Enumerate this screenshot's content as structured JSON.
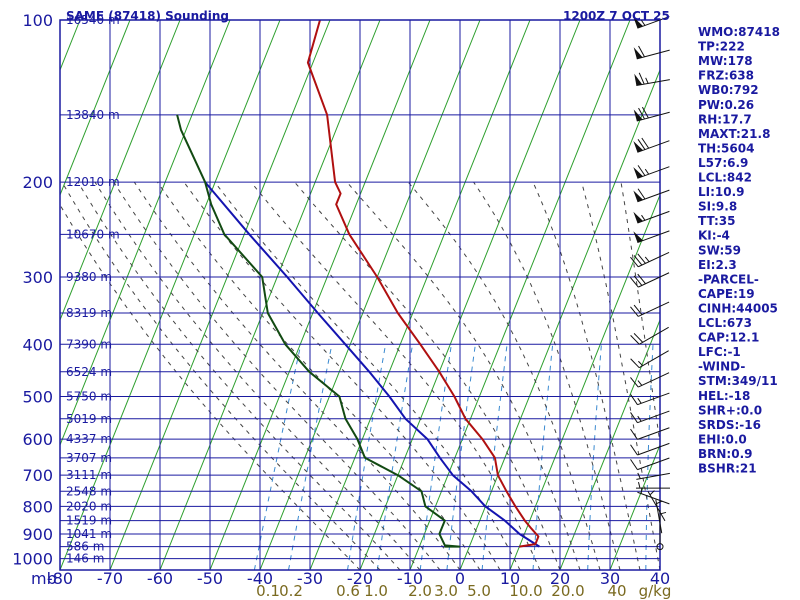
{
  "chart_data": {
    "type": "skew-t",
    "title": "SAME (87418) Sounding",
    "valid_time": "1200Z  7 OCT 25",
    "y_unit_label": "mb",
    "pressure_ticks": [
      100,
      200,
      300,
      400,
      500,
      600,
      700,
      800,
      900,
      1000
    ],
    "temp_ticks": [
      -80,
      -70,
      -60,
      -50,
      -40,
      -30,
      -20,
      -10,
      0,
      10,
      20,
      30,
      40
    ],
    "height_labels": [
      {
        "p": 100,
        "label": "16540 m"
      },
      {
        "p": 150,
        "label": "13840 m"
      },
      {
        "p": 200,
        "label": "12010 m"
      },
      {
        "p": 250,
        "label": "10670 m"
      },
      {
        "p": 300,
        "label": "9380 m"
      },
      {
        "p": 350,
        "label": "8319 m"
      },
      {
        "p": 400,
        "label": "7390 m"
      },
      {
        "p": 450,
        "label": "6524 m"
      },
      {
        "p": 500,
        "label": "5750 m"
      },
      {
        "p": 550,
        "label": "5019 m"
      },
      {
        "p": 600,
        "label": "4337 m"
      },
      {
        "p": 650,
        "label": "3707 m"
      },
      {
        "p": 700,
        "label": "3111 m"
      },
      {
        "p": 750,
        "label": "2548 m"
      },
      {
        "p": 800,
        "label": "2020 m"
      },
      {
        "p": 850,
        "label": "1519 m"
      },
      {
        "p": 900,
        "label": "1041 m"
      },
      {
        "p": 950,
        "label": "586 m"
      },
      {
        "p": 1000,
        "label": "146 m"
      }
    ],
    "mixing_ratio_labels": [
      "0.1",
      "0.2",
      "0.6",
      "1.0",
      "2.0",
      "3.0",
      "5.0",
      "10.0",
      "20.0",
      "40",
      "g/kg"
    ],
    "temperature": [
      {
        "p": 950,
        "t": 10
      },
      {
        "p": 940,
        "t": 13
      },
      {
        "p": 910,
        "t": 13
      },
      {
        "p": 880,
        "t": 11
      },
      {
        "p": 850,
        "t": 9
      },
      {
        "p": 800,
        "t": 6
      },
      {
        "p": 750,
        "t": 3
      },
      {
        "p": 700,
        "t": 0
      },
      {
        "p": 650,
        "t": -2
      },
      {
        "p": 600,
        "t": -6
      },
      {
        "p": 550,
        "t": -11
      },
      {
        "p": 500,
        "t": -15
      },
      {
        "p": 450,
        "t": -20
      },
      {
        "p": 400,
        "t": -26
      },
      {
        "p": 350,
        "t": -33
      },
      {
        "p": 300,
        "t": -40
      },
      {
        "p": 250,
        "t": -49
      },
      {
        "p": 220,
        "t": -54
      },
      {
        "p": 210,
        "t": -54
      },
      {
        "p": 200,
        "t": -56
      },
      {
        "p": 150,
        "t": -63
      },
      {
        "p": 120,
        "t": -71
      },
      {
        "p": 100,
        "t": -72
      }
    ],
    "dewpoint": [
      {
        "p": 950,
        "t": -5
      },
      {
        "p": 950,
        "t": -2
      },
      {
        "p": 945,
        "t": -5
      },
      {
        "p": 900,
        "t": -7
      },
      {
        "p": 850,
        "t": -7
      },
      {
        "p": 800,
        "t": -12
      },
      {
        "p": 750,
        "t": -14
      },
      {
        "p": 700,
        "t": -20
      },
      {
        "p": 650,
        "t": -28
      },
      {
        "p": 600,
        "t": -31
      },
      {
        "p": 550,
        "t": -35
      },
      {
        "p": 500,
        "t": -38
      },
      {
        "p": 450,
        "t": -46
      },
      {
        "p": 400,
        "t": -53
      },
      {
        "p": 350,
        "t": -59
      },
      {
        "p": 300,
        "t": -63
      },
      {
        "p": 250,
        "t": -74
      },
      {
        "p": 220,
        "t": -79
      },
      {
        "p": 200,
        "t": -82
      },
      {
        "p": 160,
        "t": -91
      },
      {
        "p": 150,
        "t": -93
      }
    ],
    "parcel": [
      {
        "p": 950,
        "t": 14
      },
      {
        "p": 900,
        "t": 9
      },
      {
        "p": 850,
        "t": 5
      },
      {
        "p": 800,
        "t": 0
      },
      {
        "p": 750,
        "t": -4
      },
      {
        "p": 700,
        "t": -9
      },
      {
        "p": 650,
        "t": -13
      },
      {
        "p": 600,
        "t": -17
      },
      {
        "p": 550,
        "t": -23
      },
      {
        "p": 500,
        "t": -28
      },
      {
        "p": 450,
        "t": -34
      },
      {
        "p": 400,
        "t": -41
      },
      {
        "p": 350,
        "t": -49
      },
      {
        "p": 300,
        "t": -58
      },
      {
        "p": 250,
        "t": -69
      },
      {
        "p": 200,
        "t": -82
      }
    ],
    "wind_barbs": [
      {
        "p": 100,
        "dir": 250,
        "spd": 55
      },
      {
        "p": 115,
        "dir": 255,
        "spd": 60
      },
      {
        "p": 130,
        "dir": 260,
        "spd": 65
      },
      {
        "p": 150,
        "dir": 255,
        "spd": 70
      },
      {
        "p": 170,
        "dir": 250,
        "spd": 70
      },
      {
        "p": 190,
        "dir": 250,
        "spd": 65
      },
      {
        "p": 210,
        "dir": 250,
        "spd": 60
      },
      {
        "p": 230,
        "dir": 250,
        "spd": 55
      },
      {
        "p": 250,
        "dir": 250,
        "spd": 50
      },
      {
        "p": 275,
        "dir": 245,
        "spd": 35
      },
      {
        "p": 300,
        "dir": 245,
        "spd": 30
      },
      {
        "p": 340,
        "dir": 245,
        "spd": 20
      },
      {
        "p": 380,
        "dir": 240,
        "spd": 20
      },
      {
        "p": 420,
        "dir": 240,
        "spd": 15
      },
      {
        "p": 460,
        "dir": 245,
        "spd": 15
      },
      {
        "p": 500,
        "dir": 250,
        "spd": 15
      },
      {
        "p": 540,
        "dir": 250,
        "spd": 15
      },
      {
        "p": 580,
        "dir": 250,
        "spd": 10
      },
      {
        "p": 620,
        "dir": 250,
        "spd": 10
      },
      {
        "p": 660,
        "dir": 250,
        "spd": 10
      },
      {
        "p": 700,
        "dir": 260,
        "spd": 5
      },
      {
        "p": 740,
        "dir": 270,
        "spd": 5
      },
      {
        "p": 780,
        "dir": 290,
        "spd": 5
      },
      {
        "p": 820,
        "dir": 330,
        "spd": 5
      },
      {
        "p": 860,
        "dir": 350,
        "spd": 5
      },
      {
        "p": 900,
        "dir": 0,
        "spd": 5
      },
      {
        "p": 950,
        "dir": 0,
        "spd": 0
      }
    ]
  },
  "indices": [
    "WMO:87418",
    "TP:222",
    "MW:178",
    "FRZ:638",
    "WB0:792",
    "PW:0.26",
    "RH:17.7",
    "MAXT:21.8",
    "TH:5604",
    "L57:6.9",
    "LCL:842",
    "LI:10.9",
    "SI:9.8",
    "TT:35",
    "KI:-4",
    "SW:59",
    "EI:2.3",
    "-PARCEL-",
    "CAPE:19",
    "CINH:44005",
    "LCL:673",
    "CAP:12.1",
    "LFC:-1",
    "-WIND-",
    "STM:349/11",
    "HEL:-18",
    "SHR+:0.0",
    "SRDS:-16",
    "EHI:0.0",
    "BRN:0.9",
    "BSHR:21"
  ],
  "colors": {
    "grid": "#1a1aa0",
    "frame": "#1a1aa0",
    "dry_adiabat": "#2ea02e",
    "moist_adiabat": "#444444",
    "mixing_ratio": "#3a8ad0",
    "temperature": "#b01010",
    "dewpoint": "#124a12",
    "parcel": "#1414b0",
    "mixing_label": "#7a6a20",
    "wind": "#111111"
  }
}
